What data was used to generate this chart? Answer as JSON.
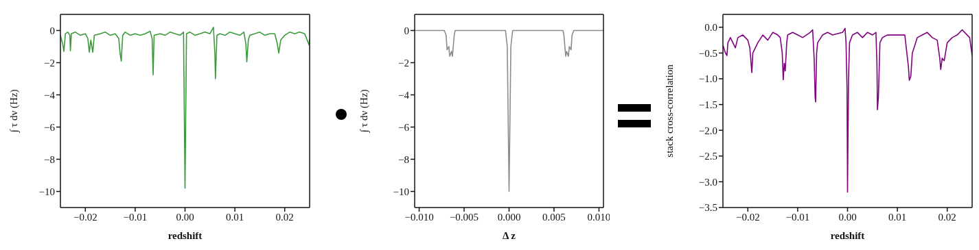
{
  "chart_data": [
    {
      "type": "line",
      "xlabel": "redshift",
      "ylabel": "∫ τ dν (Hz)",
      "xlim": [
        -0.025,
        0.025
      ],
      "ylim": [
        -11,
        1
      ],
      "xticks": [
        {
          "value": -0.02,
          "label": "−0.02"
        },
        {
          "value": -0.01,
          "label": "−0.01"
        },
        {
          "value": 0,
          "label": "0.00"
        },
        {
          "value": 0.01,
          "label": "0.01"
        },
        {
          "value": 0.02,
          "label": "0.02"
        }
      ],
      "yticks": [
        {
          "value": -10,
          "label": "−10"
        },
        {
          "value": -8,
          "label": "−8"
        },
        {
          "value": -6,
          "label": "−6"
        },
        {
          "value": -4,
          "label": "−4"
        },
        {
          "value": -2,
          "label": "−2"
        },
        0
      ],
      "x": [
        -0.025,
        -0.0245,
        -0.0243,
        -0.024,
        -0.0235,
        -0.0231,
        -0.023,
        -0.0228,
        -0.022,
        -0.021,
        -0.02,
        -0.0195,
        -0.0192,
        -0.0189,
        -0.0185,
        -0.0182,
        -0.017,
        -0.016,
        -0.015,
        -0.014,
        -0.0133,
        -0.013,
        -0.0128,
        -0.0125,
        -0.012,
        -0.011,
        -0.01,
        -0.009,
        -0.008,
        -0.007,
        -0.0066,
        -0.0064,
        -0.0062,
        -0.005,
        -0.004,
        -0.003,
        -0.002,
        -0.001,
        -0.0003,
        0,
        0.0003,
        0.001,
        0.002,
        0.003,
        0.004,
        0.005,
        0.0057,
        0.006,
        0.0061,
        0.0064,
        0.007,
        0.008,
        0.009,
        0.01,
        0.011,
        0.0118,
        0.0122,
        0.0124,
        0.0127,
        0.013,
        0.014,
        0.015,
        0.016,
        0.017,
        0.018,
        0.0185,
        0.0188,
        0.0192,
        0.02,
        0.021,
        0.022,
        0.023,
        0.024,
        0.0249,
        0.025
      ],
      "series": [
        {
          "color": "#3a9a3a",
          "values": [
            -0.3,
            -0.9,
            -1.3,
            -0.2,
            -0.1,
            -0.3,
            -1.25,
            -0.2,
            -0.1,
            -0.3,
            -0.2,
            -0.5,
            -1.35,
            -0.6,
            -1.35,
            -0.3,
            -0.2,
            -0.1,
            -0.3,
            -0.2,
            -0.5,
            -1.5,
            -1.9,
            -0.3,
            -0.1,
            -0.3,
            -0.2,
            -0.3,
            -0.2,
            -0.05,
            -0.5,
            -2.75,
            -0.3,
            -0.2,
            -0.3,
            -0.1,
            -0.2,
            -0.3,
            -0.1,
            -9.8,
            -0.2,
            -0.1,
            -0.3,
            -0.2,
            -0.1,
            -0.2,
            0.2,
            -1.5,
            -3.0,
            -0.3,
            -0.2,
            -0.3,
            -0.1,
            -0.2,
            -0.3,
            -0.1,
            -0.8,
            -1.95,
            -0.6,
            -0.3,
            -0.2,
            -0.1,
            -0.3,
            -0.2,
            -0.2,
            -0.8,
            -1.4,
            -0.6,
            -0.3,
            -0.1,
            -0.2,
            -0.1,
            -0.2,
            -0.9,
            -0.5
          ]
        }
      ]
    },
    {
      "type": "line",
      "xlabel": "Δ z",
      "ylabel": "∫ τ dν (Hz)",
      "xlim": [
        -0.0105,
        0.0105
      ],
      "ylim": [
        -11,
        1
      ],
      "xticks": [
        {
          "value": -0.01,
          "label": "−0.010"
        },
        {
          "value": -0.005,
          "label": "−0.005"
        },
        {
          "value": 0,
          "label": "0.000"
        },
        {
          "value": 0.005,
          "label": "0.005"
        },
        {
          "value": 0.01,
          "label": "0.010"
        }
      ],
      "yticks": [
        {
          "value": -10,
          "label": "−10"
        },
        {
          "value": -8,
          "label": "−8"
        },
        {
          "value": -6,
          "label": "−6"
        },
        {
          "value": -4,
          "label": "−4"
        },
        {
          "value": -2,
          "label": "−2"
        },
        0
      ],
      "x": [
        -0.0105,
        -0.0072,
        -0.007,
        -0.0069,
        -0.0067,
        -0.0066,
        -0.0064,
        -0.0063,
        -0.0061,
        -0.006,
        -0.0004,
        -0.0002,
        0,
        0.0002,
        0.0004,
        0.006,
        0.0061,
        0.0063,
        0.0064,
        0.0066,
        0.0067,
        0.0069,
        0.007,
        0.0072,
        0.0105
      ],
      "series": [
        {
          "color": "#8c8c8c",
          "values": [
            0,
            0,
            -0.3,
            -1.2,
            -1.0,
            -1.6,
            -1.3,
            -1.6,
            -0.3,
            0,
            0,
            -1,
            -10,
            -1,
            0,
            0,
            -0.3,
            -1.6,
            -1.3,
            -1.6,
            -1.0,
            -1.2,
            -0.3,
            0,
            0
          ]
        }
      ]
    },
    {
      "type": "line",
      "xlabel": "redshift",
      "ylabel": "stack cross-correlation",
      "xlim": [
        -0.025,
        0.025
      ],
      "ylim": [
        -3.5,
        0.25
      ],
      "xticks": [
        {
          "value": -0.02,
          "label": "−0.02"
        },
        {
          "value": -0.01,
          "label": "−0.01"
        },
        {
          "value": 0,
          "label": "0.00"
        },
        {
          "value": 0.01,
          "label": "0.01"
        },
        {
          "value": 0.02,
          "label": "0.02"
        }
      ],
      "yticks": [
        {
          "value": -3.5,
          "label": "−3.5"
        },
        {
          "value": -3,
          "label": "−3.0"
        },
        {
          "value": -2.5,
          "label": "−2.5"
        },
        {
          "value": -2,
          "label": "−2.0"
        },
        {
          "value": -1.5,
          "label": "−1.5"
        },
        {
          "value": -1,
          "label": "−1.0"
        },
        {
          "value": -0.5,
          "label": "−0.5"
        },
        {
          "value": 0,
          "label": "0.0"
        }
      ],
      "x": [
        -0.025,
        -0.0245,
        -0.0242,
        -0.024,
        -0.0235,
        -0.0225,
        -0.022,
        -0.021,
        -0.02,
        -0.0196,
        -0.0192,
        -0.019,
        -0.0185,
        -0.018,
        -0.017,
        -0.016,
        -0.015,
        -0.014,
        -0.0135,
        -0.0131,
        -0.0129,
        -0.0127,
        -0.0125,
        -0.0122,
        -0.012,
        -0.011,
        -0.01,
        -0.009,
        -0.0075,
        -0.007,
        -0.0067,
        -0.0065,
        -0.0064,
        -0.0062,
        -0.006,
        -0.005,
        -0.004,
        -0.003,
        -0.001,
        -0.0005,
        -0.0003,
        -0.0001,
        0,
        0.0002,
        0.0004,
        0.001,
        0.002,
        0.003,
        0.004,
        0.005,
        0.0057,
        0.0059,
        0.006,
        0.0062,
        0.0065,
        0.007,
        0.008,
        0.009,
        0.0115,
        0.0119,
        0.0122,
        0.0124,
        0.0127,
        0.013,
        0.014,
        0.015,
        0.016,
        0.017,
        0.018,
        0.0185,
        0.0187,
        0.019,
        0.0194,
        0.02,
        0.021,
        0.022,
        0.023,
        0.024,
        0.0245,
        0.025
      ],
      "series": [
        {
          "color": "#800080",
          "values": [
            -0.35,
            -0.5,
            -0.55,
            -0.3,
            -0.2,
            -0.4,
            -0.2,
            -0.15,
            -0.25,
            -0.4,
            -0.88,
            -0.5,
            -0.4,
            -0.3,
            -0.15,
            -0.25,
            -0.1,
            -0.15,
            -0.2,
            -0.5,
            -1.02,
            -0.7,
            -0.85,
            -0.3,
            -0.15,
            -0.1,
            -0.15,
            -0.2,
            -0.1,
            -0.05,
            -0.6,
            -1.35,
            -1.45,
            -0.5,
            -0.3,
            -0.15,
            -0.1,
            -0.15,
            -0.1,
            -0.02,
            -0.3,
            -1.2,
            -3.2,
            -1.0,
            -0.3,
            -0.15,
            -0.1,
            -0.2,
            -0.1,
            -0.15,
            -0.1,
            -0.7,
            -1.6,
            -1.35,
            -0.3,
            -0.2,
            -0.15,
            -0.15,
            -0.15,
            -0.5,
            -0.75,
            -1.03,
            -0.95,
            -0.5,
            -0.2,
            -0.15,
            -0.1,
            -0.2,
            -0.25,
            -0.6,
            -0.82,
            -0.6,
            -0.65,
            -0.3,
            -0.2,
            -0.15,
            -0.05,
            -0.15,
            -0.2,
            -0.55
          ]
        }
      ]
    }
  ]
}
